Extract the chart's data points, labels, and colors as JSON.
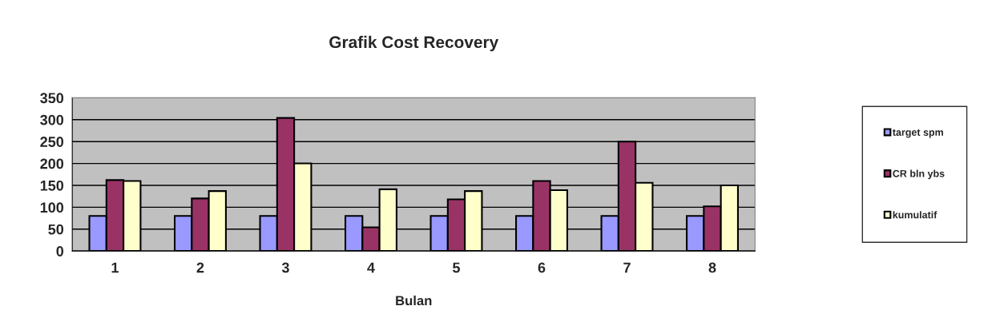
{
  "chart_data": {
    "type": "bar",
    "title": "Grafik Cost Recovery",
    "xlabel": "Bulan",
    "categories": [
      "1",
      "2",
      "3",
      "4",
      "5",
      "6",
      "7",
      "8"
    ],
    "series": [
      {
        "name": "target spm",
        "color": "#9999ff",
        "values": [
          80,
          80,
          80,
          80,
          80,
          80,
          80,
          80
        ]
      },
      {
        "name": "CR bln ybs",
        "color": "#993366",
        "values": [
          162,
          120,
          304,
          54,
          118,
          160,
          250,
          102
        ]
      },
      {
        "name": "kumulatif",
        "color": "#ffffcc",
        "values": [
          160,
          137,
          200,
          141,
          137,
          139,
          156,
          150
        ]
      }
    ],
    "ylim": [
      0,
      350
    ],
    "yticks": [
      0,
      50,
      100,
      150,
      200,
      250,
      300,
      350
    ],
    "grid": "y",
    "legend": "right"
  }
}
